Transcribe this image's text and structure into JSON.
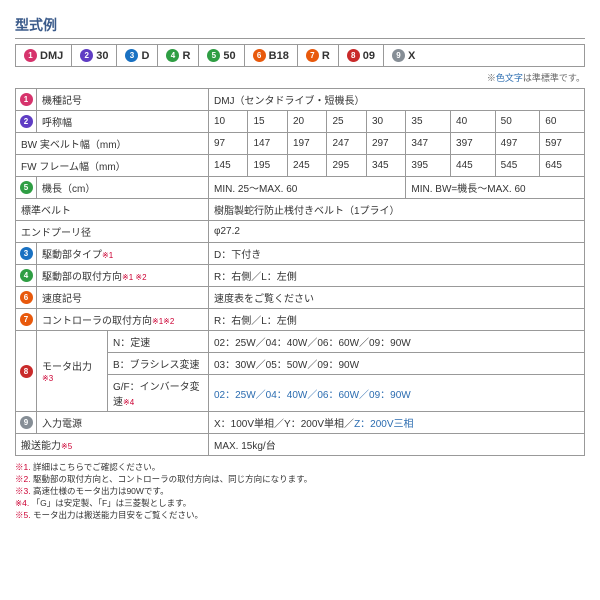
{
  "title": "型式例",
  "badges": [
    {
      "n": "1",
      "c": "#d6336c",
      "t": "DMJ"
    },
    {
      "n": "2",
      "c": "#5f3dc4",
      "t": "30"
    },
    {
      "n": "3",
      "c": "#1971c2",
      "t": "D"
    },
    {
      "n": "4",
      "c": "#2f9e44",
      "t": "R"
    },
    {
      "n": "5",
      "c": "#2f9e44",
      "t": "50"
    },
    {
      "n": "6",
      "c": "#e8590c",
      "t": "B18"
    },
    {
      "n": "7",
      "c": "#e8590c",
      "t": "R"
    },
    {
      "n": "8",
      "c": "#c92a2a",
      "t": "09"
    },
    {
      "n": "9",
      "c": "#868e96",
      "t": "X"
    }
  ],
  "note": "※色文字は準標準です。",
  "row1": {
    "label": "機種記号",
    "val": "DMJ（センタドライブ・短機長）"
  },
  "row2": {
    "label": "呼称幅",
    "cells": [
      "10",
      "15",
      "20",
      "25",
      "30",
      "35",
      "40",
      "50",
      "60"
    ]
  },
  "row3": {
    "label": "BW 実ベルト幅（mm）",
    "cells": [
      "97",
      "147",
      "197",
      "247",
      "297",
      "347",
      "397",
      "497",
      "597"
    ]
  },
  "row4": {
    "label": "FW フレーム幅（mm）",
    "cells": [
      "145",
      "195",
      "245",
      "295",
      "345",
      "395",
      "445",
      "545",
      "645"
    ]
  },
  "row5": {
    "label": "機長（cm）",
    "v1": "MIN. 25～MAX. 60",
    "v2": "MIN. BW=機長～MAX. 60"
  },
  "row6": {
    "label": "標準ベルト",
    "val": "樹脂製蛇行防止桟付きベルト（1プライ）"
  },
  "row7": {
    "label": "エンドプーリ径",
    "val": "φ27.2"
  },
  "row8": {
    "label": "駆動部タイプ",
    "note": "※1",
    "val": "D：下付き"
  },
  "row9": {
    "label": "駆動部の取付方向",
    "note": "※1 ※2",
    "val": "R：右側／L：左側"
  },
  "row10": {
    "label": "速度記号",
    "val": "速度表をご覧ください"
  },
  "row11": {
    "label": "コントローラの取付方向",
    "note": "※1※2",
    "val": "R：右側／L：左側"
  },
  "row12": {
    "label": "モータ出力",
    "note": "※3",
    "sub": [
      {
        "l": "N：定速",
        "v": "02：25W／04：40W／06：60W／09：90W"
      },
      {
        "l": "B：ブラシレス変速",
        "v": "03：30W／05：50W／09：90W"
      },
      {
        "l": "G/F：インバータ変速",
        "vn": "※4",
        "v": "02：25W／04：40W／06：60W／09：90W",
        "accent": true
      }
    ]
  },
  "row13": {
    "label": "入力電源",
    "val": "X：100V単相／Y：200V単相／",
    "val2": "Z：200V三相"
  },
  "row14": {
    "label": "搬送能力",
    "note": "※5",
    "val": "MAX. 15kg/台"
  },
  "footnotes": [
    "※1. 詳細はこちらでご確認ください。",
    "※2. 駆動部の取付方向と、コントローラの取付方向は、同じ方向になります。",
    "※3. 高速仕様のモータ出力は90Wです。",
    "※4. 「G」は安定製、「F」は三菱製とします。",
    "※5. モータ出力は搬送能力目安をご覧ください。"
  ]
}
